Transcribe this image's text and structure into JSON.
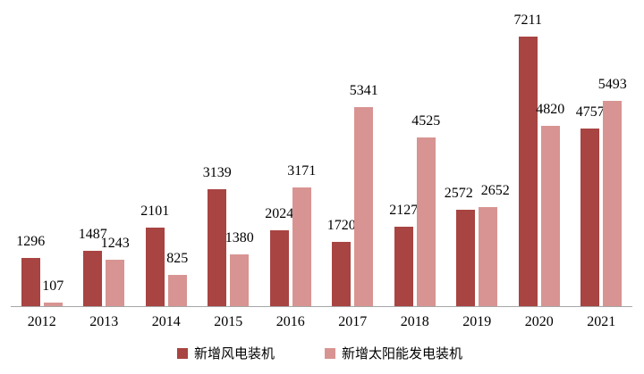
{
  "chart_data": {
    "type": "bar",
    "categories": [
      "2012",
      "2013",
      "2014",
      "2015",
      "2016",
      "2017",
      "2018",
      "2019",
      "2020",
      "2021"
    ],
    "series": [
      {
        "name": "新增风电装机",
        "color": "#A84442",
        "values": [
          1296,
          1487,
          2101,
          3139,
          2024,
          1720,
          2127,
          2572,
          7211,
          4757
        ],
        "label_dx": [
          0,
          0,
          0,
          0,
          0,
          0,
          0,
          -8,
          0,
          0
        ]
      },
      {
        "name": "新增太阳能发电装机",
        "color": "#D89492",
        "values": [
          107,
          1243,
          825,
          1380,
          3171,
          5341,
          4525,
          2652,
          4820,
          5493
        ],
        "label_dx": [
          0,
          0,
          0,
          0,
          0,
          0,
          0,
          8,
          0,
          0
        ]
      }
    ],
    "title": "",
    "xlabel": "",
    "ylabel": "",
    "ylim": [
      0,
      8200
    ],
    "grid": false,
    "data_labels": true,
    "legend_position": "bottom",
    "axis_line_color": "#A6A6A6",
    "background": "#FFFFFF",
    "label_color": "#000000"
  }
}
